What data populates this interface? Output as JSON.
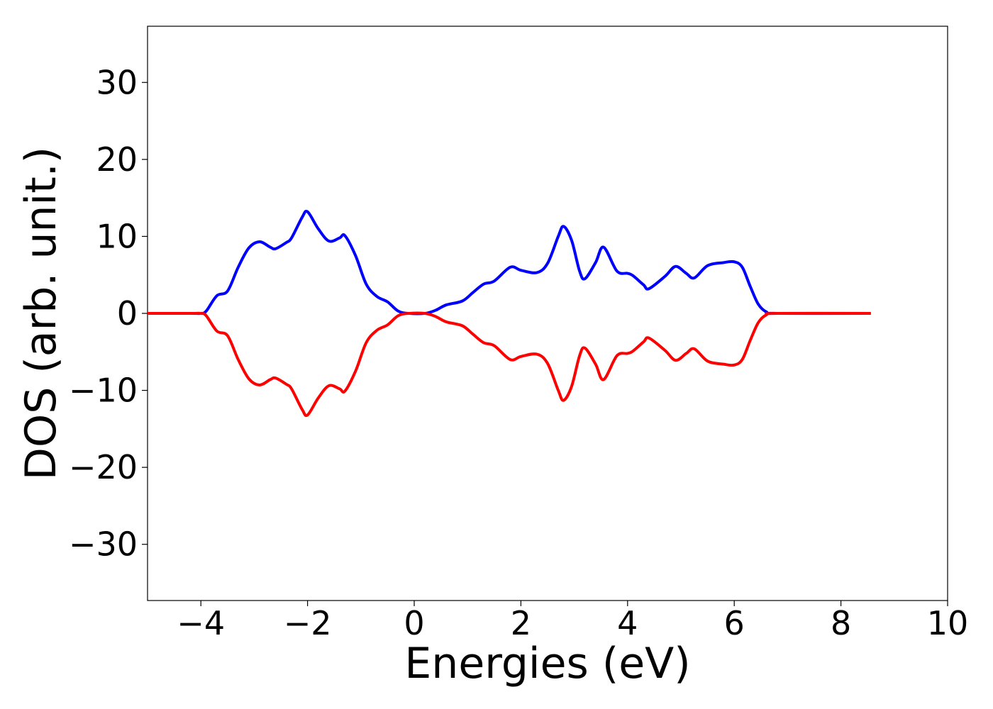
{
  "chart_data": {
    "type": "line",
    "xlabel": "Energies (eV)",
    "ylabel": "DOS (arb. unit.)",
    "x": [
      -5,
      -4.2,
      -4,
      -3.9,
      -3.7,
      -3.5,
      -3.3,
      -3.1,
      -2.9,
      -2.7,
      -2.6,
      -2.4,
      -2.3,
      -2.1,
      -2,
      -1.8,
      -1.6,
      -1.4,
      -1.3,
      -1.1,
      -0.9,
      -0.7,
      -0.5,
      -0.3,
      -0.1,
      0.2,
      0.4,
      0.6,
      0.9,
      1.1,
      1.3,
      1.5,
      1.8,
      2,
      2.3,
      2.5,
      2.7,
      2.8,
      2.95,
      3.1,
      3.2,
      3.4,
      3.55,
      3.8,
      4,
      4.1,
      4.3,
      4.4,
      4.7,
      4.9,
      5.1,
      5.25,
      5.5,
      5.8,
      6,
      6.15,
      6.3,
      6.45,
      6.6,
      6.8,
      8.56
    ],
    "series": [
      {
        "color": "#0000ff",
        "values": [
          0,
          0,
          0,
          0.3,
          2.3,
          2.9,
          6,
          8.5,
          9.3,
          8.6,
          8.4,
          9.2,
          9.8,
          12.5,
          13.2,
          11,
          9.4,
          9.8,
          10.1,
          7.5,
          3.8,
          2.2,
          1.5,
          0.3,
          0,
          0,
          0.4,
          1.1,
          1.6,
          2.7,
          3.8,
          4.2,
          6,
          5.6,
          5.3,
          6.5,
          10,
          11.3,
          9.5,
          5.5,
          4.5,
          6.6,
          8.6,
          5.5,
          5.2,
          4.9,
          3.7,
          3.2,
          4.8,
          6.1,
          5.2,
          4.6,
          6.2,
          6.6,
          6.7,
          6,
          3.5,
          1.2,
          0.2,
          0,
          0
        ]
      },
      {
        "color": "#ff0000",
        "values": [
          0,
          0,
          0,
          -0.3,
          -2.3,
          -2.9,
          -6,
          -8.5,
          -9.3,
          -8.6,
          -8.4,
          -9.2,
          -9.8,
          -12.5,
          -13.2,
          -11,
          -9.4,
          -9.8,
          -10.1,
          -7.5,
          -3.8,
          -2.2,
          -1.5,
          -0.3,
          0,
          0,
          -0.4,
          -1.1,
          -1.6,
          -2.7,
          -3.8,
          -4.2,
          -6,
          -5.6,
          -5.3,
          -6.5,
          -10,
          -11.3,
          -9.5,
          -5.5,
          -4.5,
          -6.6,
          -8.6,
          -5.5,
          -5.2,
          -4.9,
          -3.7,
          -3.2,
          -4.8,
          -6.1,
          -5.2,
          -4.6,
          -6.2,
          -6.6,
          -6.7,
          -6,
          -3.5,
          -1.2,
          -0.2,
          0,
          0
        ]
      }
    ],
    "xlim": [
      -5,
      10
    ],
    "xticks": [
      {
        "value": -4,
        "label": "−4"
      },
      {
        "value": -2,
        "label": "−2"
      },
      0,
      2,
      4,
      6,
      8,
      10
    ],
    "ylim": [
      -37.3,
      37.3
    ],
    "yticks": [
      {
        "value": -30,
        "label": "−30"
      },
      {
        "value": -20,
        "label": "−20"
      },
      {
        "value": -10,
        "label": "−10"
      },
      0,
      10,
      20,
      30
    ],
    "grid": false
  }
}
